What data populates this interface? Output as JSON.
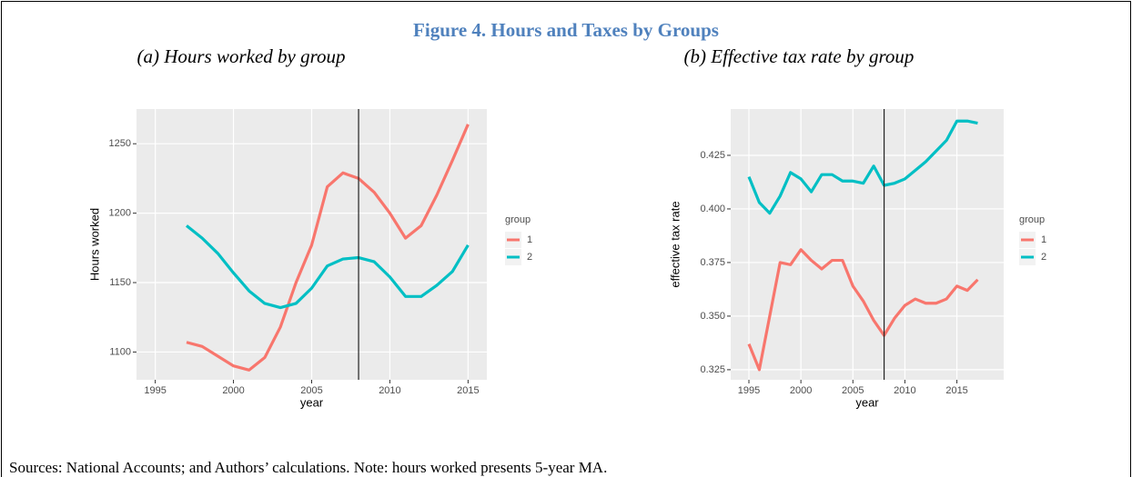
{
  "figure": {
    "title": "Figure 4. Hours and Taxes by Groups",
    "note": "Sources: National Accounts; and Authors’ calculations. Note: hours worked presents 5-year MA."
  },
  "chart_data": [
    {
      "type": "line",
      "subtitle": "(a) Hours worked by group",
      "x_label": "year",
      "y_label": "Hours worked",
      "x": [
        1997,
        1998,
        1999,
        2000,
        2001,
        2002,
        2003,
        2004,
        2005,
        2006,
        2007,
        2008,
        2009,
        2010,
        2011,
        2012,
        2013,
        2014,
        2015
      ],
      "series": [
        {
          "name": "1",
          "color": "#f8766d",
          "values": [
            1107,
            1104,
            1097,
            1090,
            1087,
            1096,
            1118,
            1150,
            1177,
            1219,
            1229,
            1225,
            1215,
            1200,
            1182,
            1191,
            1213,
            1238,
            1264
          ]
        },
        {
          "name": "2",
          "color": "#00bfc4",
          "values": [
            1191,
            1182,
            1171,
            1157,
            1144,
            1135,
            1132,
            1135,
            1146,
            1162,
            1167,
            1168,
            1165,
            1154,
            1140,
            1140,
            1148,
            1158,
            1177
          ]
        }
      ],
      "xlim": [
        1993.8,
        2016.2
      ],
      "xticks": [
        1995,
        2000,
        2005,
        2010,
        2015
      ],
      "ylim": [
        1080,
        1275
      ],
      "yticks": [
        1100,
        1150,
        1200,
        1250
      ],
      "vline": 2008,
      "legend_title": "group",
      "grid": true
    },
    {
      "type": "line",
      "subtitle": "(b) Effective tax rate by group",
      "x_label": "year",
      "y_label": "effective tax rate",
      "x": [
        1995,
        1996,
        1997,
        1998,
        1999,
        2000,
        2001,
        2002,
        2003,
        2004,
        2005,
        2006,
        2007,
        2008,
        2009,
        2010,
        2011,
        2012,
        2013,
        2014,
        2015,
        2016,
        2017
      ],
      "series": [
        {
          "name": "1",
          "color": "#f8766d",
          "values": [
            0.337,
            0.325,
            0.35,
            0.375,
            0.374,
            0.381,
            0.376,
            0.372,
            0.376,
            0.376,
            0.364,
            0.357,
            0.348,
            0.341,
            0.349,
            0.355,
            0.358,
            0.356,
            0.356,
            0.358,
            0.364,
            0.362,
            0.367
          ]
        },
        {
          "name": "2",
          "color": "#00bfc4",
          "values": [
            0.415,
            0.403,
            0.398,
            0.406,
            0.417,
            0.414,
            0.408,
            0.416,
            0.416,
            0.413,
            0.413,
            0.412,
            0.42,
            0.411,
            0.412,
            0.414,
            0.418,
            0.422,
            0.427,
            0.432,
            0.441,
            0.441,
            0.44
          ]
        }
      ],
      "xlim": [
        1993.25,
        2019.5
      ],
      "xticks": [
        1995,
        2000,
        2005,
        2010,
        2015
      ],
      "ylim": [
        0.3203,
        0.4466
      ],
      "yticks": [
        0.325,
        {
          "value": 0.35,
          "label": "0.350"
        },
        0.375,
        {
          "value": 0.4,
          "label": "0.400"
        },
        0.425
      ],
      "vline": 2008,
      "legend_title": "group",
      "grid": true
    }
  ]
}
